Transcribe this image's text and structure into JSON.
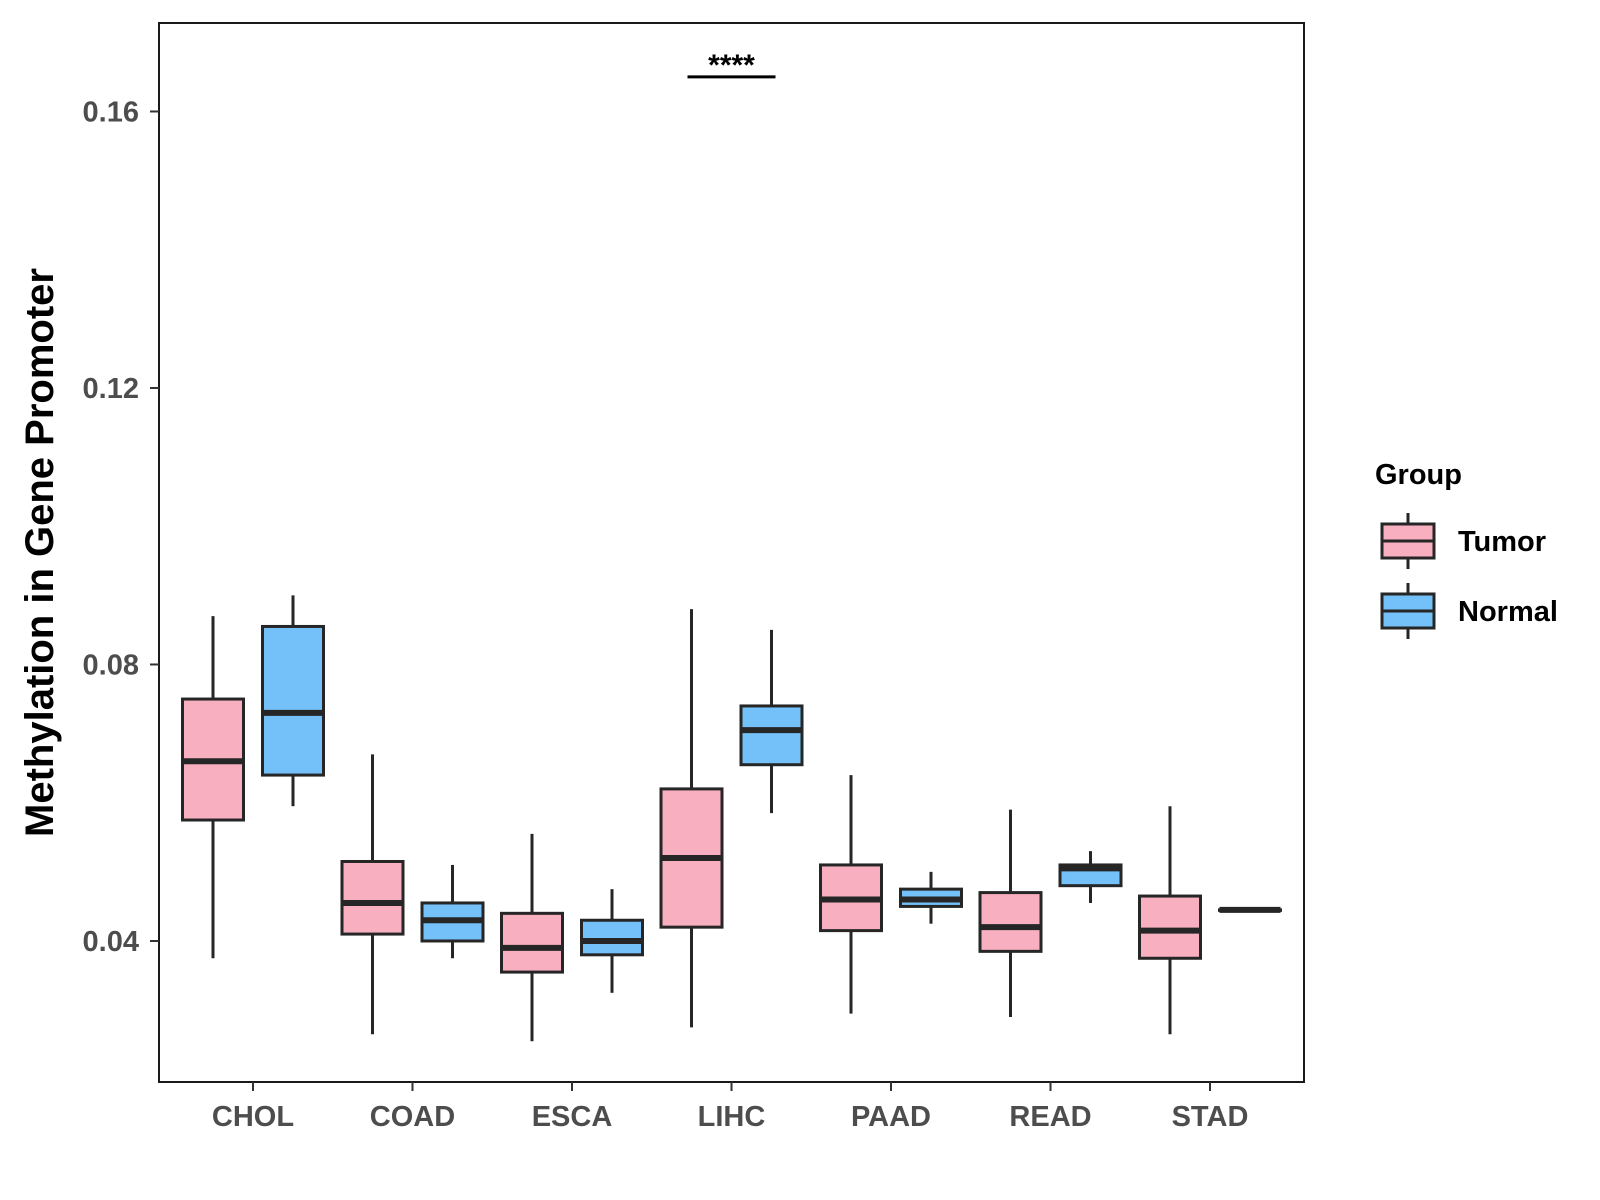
{
  "chart_data": {
    "type": "boxplot",
    "title": "",
    "xlabel": "",
    "ylabel": "Methylation in Gene Promoter",
    "ylim": [
      0.0196,
      0.1728
    ],
    "yticks": [
      0.04,
      0.08,
      0.12,
      0.16
    ],
    "ytick_labels": [
      "0.04",
      "0.08",
      "0.12",
      "0.16"
    ],
    "categories": [
      "CHOL",
      "COAD",
      "ESCA",
      "LIHC",
      "PAAD",
      "READ",
      "STAD"
    ],
    "legend": {
      "title": "Group",
      "position": "right"
    },
    "series": [
      {
        "name": "Tumor",
        "color": "#F8AFC0",
        "boxes": [
          {
            "whisker_low": 0.0375,
            "q1": 0.0575,
            "median": 0.066,
            "q3": 0.075,
            "whisker_high": 0.087
          },
          {
            "whisker_low": 0.0265,
            "q1": 0.041,
            "median": 0.0455,
            "q3": 0.0515,
            "whisker_high": 0.067
          },
          {
            "whisker_low": 0.0255,
            "q1": 0.0355,
            "median": 0.039,
            "q3": 0.044,
            "whisker_high": 0.0555
          },
          {
            "whisker_low": 0.0275,
            "q1": 0.042,
            "median": 0.052,
            "q3": 0.062,
            "whisker_high": 0.088
          },
          {
            "whisker_low": 0.0295,
            "q1": 0.0415,
            "median": 0.046,
            "q3": 0.051,
            "whisker_high": 0.064
          },
          {
            "whisker_low": 0.029,
            "q1": 0.0385,
            "median": 0.042,
            "q3": 0.047,
            "whisker_high": 0.059
          },
          {
            "whisker_low": 0.0265,
            "q1": 0.0375,
            "median": 0.0415,
            "q3": 0.0465,
            "whisker_high": 0.0595
          }
        ]
      },
      {
        "name": "Normal",
        "color": "#74C0F8",
        "boxes": [
          {
            "whisker_low": 0.0595,
            "q1": 0.064,
            "median": 0.073,
            "q3": 0.0855,
            "whisker_high": 0.09
          },
          {
            "whisker_low": 0.0375,
            "q1": 0.04,
            "median": 0.043,
            "q3": 0.0455,
            "whisker_high": 0.051
          },
          {
            "whisker_low": 0.0325,
            "q1": 0.038,
            "median": 0.04,
            "q3": 0.043,
            "whisker_high": 0.0475
          },
          {
            "whisker_low": 0.0585,
            "q1": 0.0655,
            "median": 0.0705,
            "q3": 0.074,
            "whisker_high": 0.085
          },
          {
            "whisker_low": 0.0425,
            "q1": 0.045,
            "median": 0.046,
            "q3": 0.0475,
            "whisker_high": 0.05
          },
          {
            "whisker_low": 0.0455,
            "q1": 0.048,
            "median": 0.0505,
            "q3": 0.051,
            "whisker_high": 0.053
          },
          {
            "whisker_low": 0.0445,
            "q1": 0.0445,
            "median": 0.0445,
            "q3": 0.0445,
            "whisker_high": 0.0445
          }
        ]
      }
    ],
    "annotations": [
      {
        "category": "LIHC",
        "text": "****",
        "y": 0.165
      }
    ]
  }
}
